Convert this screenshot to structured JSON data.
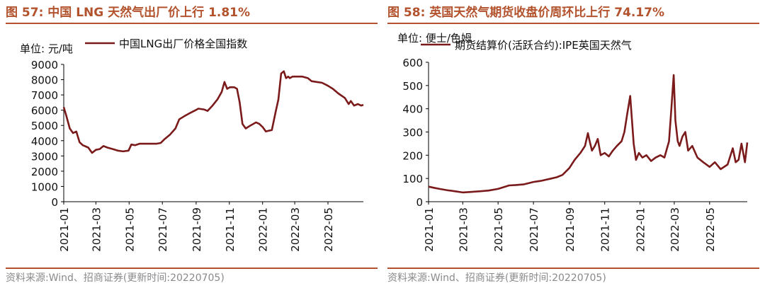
{
  "colors": {
    "title": "#b3532e",
    "series": "#7b1a1a",
    "source": "#8a8a8a"
  },
  "left": {
    "fig_no": "图 57:",
    "title": "中国 LNG 天然气出厂价上行 1.81%",
    "source": "资料来源:Wind、招商证券(更新时间:20220705)"
  },
  "right": {
    "fig_no": "图 58:",
    "title": "英国天然气期货收盘价周环比上行 74.17%",
    "source": "资料来源:Wind、招商证券(更新时间:20220705)"
  },
  "chart_data": [
    {
      "type": "line",
      "title": "",
      "ylabel": "单位: 元/吨",
      "xlabel": "",
      "ylim": [
        0,
        9000
      ],
      "yticks": [
        0,
        1000,
        2000,
        3000,
        4000,
        5000,
        6000,
        7000,
        8000,
        9000
      ],
      "x_range": [
        "2021-01-01",
        "2022-07-05"
      ],
      "xticks": [
        "2021-01",
        "2021-03",
        "2021-05",
        "2021-07",
        "2021-09",
        "2021-11",
        "2022-01",
        "2022-03",
        "2022-05"
      ],
      "legend": "top",
      "grid": false,
      "series": [
        {
          "name": "中国LNG出厂价格全国指数",
          "x": [
            "2021-01-01",
            "2021-01-06",
            "2021-01-12",
            "2021-01-18",
            "2021-01-24",
            "2021-01-30",
            "2021-02-05",
            "2021-02-15",
            "2021-02-22",
            "2021-03-01",
            "2021-03-08",
            "2021-03-15",
            "2021-03-22",
            "2021-04-01",
            "2021-04-10",
            "2021-04-20",
            "2021-04-30",
            "2021-05-05",
            "2021-05-12",
            "2021-05-20",
            "2021-06-01",
            "2021-06-10",
            "2021-06-20",
            "2021-06-28",
            "2021-07-05",
            "2021-07-15",
            "2021-07-25",
            "2021-08-01",
            "2021-08-10",
            "2021-08-20",
            "2021-08-31",
            "2021-09-05",
            "2021-09-15",
            "2021-09-22",
            "2021-10-01",
            "2021-10-10",
            "2021-10-18",
            "2021-10-23",
            "2021-10-28",
            "2021-11-02",
            "2021-11-10",
            "2021-11-15",
            "2021-11-20",
            "2021-11-25",
            "2021-12-01",
            "2021-12-10",
            "2021-12-20",
            "2021-12-26",
            "2022-01-01",
            "2022-01-07",
            "2022-01-12",
            "2022-01-18",
            "2022-01-25",
            "2022-01-30",
            "2022-02-04",
            "2022-02-09",
            "2022-02-13",
            "2022-02-17",
            "2022-02-20",
            "2022-02-25",
            "2022-03-05",
            "2022-03-15",
            "2022-03-25",
            "2022-04-01",
            "2022-04-10",
            "2022-04-20",
            "2022-05-01",
            "2022-05-10",
            "2022-05-20",
            "2022-06-01",
            "2022-06-08",
            "2022-06-12",
            "2022-06-18",
            "2022-06-25",
            "2022-07-01",
            "2022-07-05"
          ],
          "values": [
            6200,
            5600,
            4800,
            4500,
            4600,
            3900,
            3700,
            3550,
            3200,
            3400,
            3450,
            3650,
            3550,
            3450,
            3350,
            3300,
            3350,
            3750,
            3700,
            3800,
            3800,
            3800,
            3800,
            3850,
            4100,
            4400,
            4800,
            5400,
            5600,
            5800,
            6000,
            6100,
            6050,
            5950,
            6300,
            6700,
            7200,
            7850,
            7400,
            7500,
            7500,
            7400,
            6500,
            5100,
            4800,
            5000,
            5200,
            5100,
            4900,
            4600,
            4650,
            4700,
            5900,
            6700,
            8400,
            8550,
            8100,
            8200,
            8100,
            8200,
            8200,
            8200,
            8100,
            7900,
            7850,
            7800,
            7600,
            7400,
            7100,
            6800,
            6400,
            6600,
            6300,
            6400,
            6300,
            6350
          ]
        }
      ]
    },
    {
      "type": "line",
      "title": "",
      "ylabel": "单位: 便士/色姆",
      "xlabel": "",
      "ylim": [
        0,
        600
      ],
      "yticks": [
        0,
        100,
        200,
        300,
        400,
        500,
        600
      ],
      "x_range": [
        "2021-01-01",
        "2022-07-05"
      ],
      "xticks": [
        "2021-01",
        "2021-03",
        "2021-05",
        "2021-07",
        "2021-09",
        "2021-11",
        "2022-01",
        "2022-03",
        "2022-05"
      ],
      "legend": "top",
      "grid": false,
      "series": [
        {
          "name": "期货结算价(活跃合约):IPE英国天然气",
          "x": [
            "2021-01-01",
            "2021-01-10",
            "2021-01-20",
            "2021-02-01",
            "2021-02-15",
            "2021-03-01",
            "2021-03-15",
            "2021-04-01",
            "2021-04-15",
            "2021-05-01",
            "2021-05-10",
            "2021-05-20",
            "2021-06-01",
            "2021-06-15",
            "2021-07-01",
            "2021-07-15",
            "2021-08-01",
            "2021-08-10",
            "2021-08-20",
            "2021-09-01",
            "2021-09-10",
            "2021-09-20",
            "2021-09-28",
            "2021-10-03",
            "2021-10-06",
            "2021-10-10",
            "2021-10-15",
            "2021-10-20",
            "2021-10-25",
            "2021-11-01",
            "2021-11-08",
            "2021-11-15",
            "2021-11-22",
            "2021-11-30",
            "2021-12-05",
            "2021-12-10",
            "2021-12-15",
            "2021-12-21",
            "2021-12-25",
            "2021-12-30",
            "2022-01-05",
            "2022-01-12",
            "2022-01-20",
            "2022-01-28",
            "2022-02-05",
            "2022-02-12",
            "2022-02-20",
            "2022-02-24",
            "2022-02-28",
            "2022-03-03",
            "2022-03-07",
            "2022-03-10",
            "2022-03-15",
            "2022-03-20",
            "2022-03-25",
            "2022-04-01",
            "2022-04-10",
            "2022-04-20",
            "2022-05-01",
            "2022-05-10",
            "2022-05-20",
            "2022-06-01",
            "2022-06-10",
            "2022-06-15",
            "2022-06-20",
            "2022-06-25",
            "2022-07-01",
            "2022-07-05"
          ],
          "values": [
            65,
            60,
            55,
            50,
            45,
            40,
            42,
            45,
            48,
            55,
            62,
            70,
            72,
            75,
            85,
            90,
            100,
            105,
            115,
            145,
            180,
            210,
            240,
            295,
            260,
            220,
            240,
            270,
            200,
            210,
            195,
            220,
            240,
            260,
            300,
            380,
            455,
            250,
            180,
            210,
            190,
            200,
            175,
            190,
            200,
            190,
            260,
            400,
            545,
            350,
            260,
            240,
            280,
            300,
            220,
            240,
            190,
            170,
            150,
            170,
            140,
            160,
            230,
            170,
            180,
            250,
            170,
            255
          ]
        }
      ]
    }
  ]
}
